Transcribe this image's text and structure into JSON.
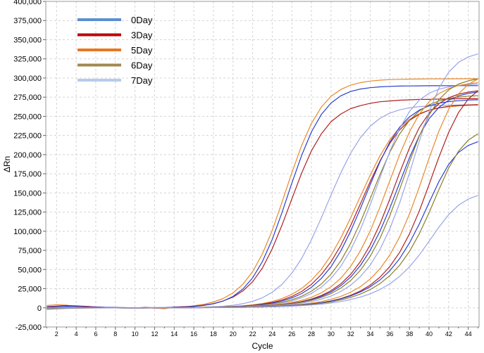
{
  "chart_data": {
    "type": "line",
    "title": "",
    "xlabel": "Cycle",
    "ylabel": "ΔRn",
    "xlim": [
      0.9,
      45.1
    ],
    "ylim": [
      -25000,
      400000
    ],
    "x_ticks": [
      2,
      4,
      6,
      8,
      10,
      12,
      14,
      16,
      18,
      20,
      22,
      24,
      26,
      28,
      30,
      32,
      34,
      36,
      38,
      40,
      42,
      44
    ],
    "y_ticks": [
      -25000,
      0,
      25000,
      50000,
      75000,
      100000,
      125000,
      150000,
      175000,
      200000,
      225000,
      250000,
      275000,
      300000,
      325000,
      350000,
      375000,
      400000
    ],
    "y_tick_labels": [
      "-25,000",
      "0",
      "25,000",
      "50,000",
      "75,000",
      "100,000",
      "125,000",
      "150,000",
      "175,000",
      "200,000",
      "225,000",
      "250,000",
      "275,000",
      "300,000",
      "325,000",
      "350,000",
      "375,000",
      "400,000"
    ],
    "grid": true,
    "legend_position": "top-left",
    "legend": [
      {
        "name": "0Day",
        "color": "#5b8fd0"
      },
      {
        "name": "3Day",
        "color": "#c00000"
      },
      {
        "name": "5Day",
        "color": "#e87722"
      },
      {
        "name": "6Day",
        "color": "#a08850"
      },
      {
        "name": "7Day",
        "color": "#b8cce8"
      }
    ],
    "x": [
      1,
      2,
      3,
      4,
      5,
      6,
      7,
      8,
      9,
      10,
      11,
      12,
      13,
      14,
      15,
      16,
      17,
      18,
      19,
      20,
      21,
      22,
      23,
      24,
      25,
      26,
      27,
      28,
      29,
      30,
      31,
      32,
      33,
      34,
      35,
      36,
      37,
      38,
      39,
      40,
      41,
      42,
      43,
      44,
      45
    ],
    "series": [
      {
        "name": "5Day",
        "group": "5Day",
        "color": "#e8892a",
        "values": [
          3000,
          4000,
          3500,
          1500,
          2000,
          800,
          600,
          300,
          200,
          -400,
          500,
          0,
          -1200,
          1200,
          900,
          2800,
          4600,
          7600,
          12200,
          19500,
          30700,
          47200,
          70500,
          101000,
          137800,
          176400,
          211900,
          240800,
          261900,
          276100,
          285100,
          290700,
          294000,
          296000,
          297200,
          297900,
          298300,
          298600,
          298700,
          298800,
          298900,
          298900,
          299000,
          299000,
          299000
        ]
      },
      {
        "name": "3Day",
        "group": "3Day",
        "color": "#b02020",
        "values": [
          1500,
          2200,
          3000,
          2500,
          2000,
          1200,
          600,
          300,
          0,
          -400,
          500,
          -500,
          0,
          1000,
          1500,
          2000,
          3500,
          5500,
          9000,
          14000,
          22000,
          34000,
          52000,
          77000,
          108000,
          142000,
          176000,
          205000,
          227000,
          243000,
          253000,
          260000,
          264000,
          267000,
          269000,
          270000,
          271000,
          271500,
          272000,
          272000,
          272500,
          272500,
          273000,
          273000,
          273000
        ]
      },
      {
        "name": "0Day",
        "group": "0Day",
        "color": "#2a3fd0",
        "values": [
          1000,
          1500,
          2000,
          1800,
          1200,
          900,
          600,
          400,
          200,
          100,
          300,
          200,
          400,
          700,
          1100,
          1800,
          3100,
          5300,
          8900,
          14900,
          24500,
          39200,
          60500,
          89200,
          124400,
          162600,
          199100,
          229700,
          252300,
          267400,
          276800,
          282400,
          285600,
          287400,
          288500,
          289100,
          289500,
          289700,
          289800,
          289900,
          289900,
          290000,
          290000,
          290000,
          290000
        ]
      },
      {
        "name": "7Day",
        "group": "7Day",
        "color": "#9aa3ea",
        "values": [
          -1000,
          0,
          500,
          400,
          300,
          200,
          100,
          0,
          -200,
          -300,
          0,
          -100,
          100,
          200,
          300,
          500,
          800,
          1300,
          2100,
          3400,
          5400,
          8500,
          13200,
          20300,
          30600,
          45100,
          64500,
          88900,
          117300,
          147300,
          176300,
          201800,
          222200,
          237200,
          247500,
          254200,
          258500,
          261100,
          262700,
          263600,
          264200,
          264500,
          264700,
          264800,
          264900
        ]
      },
      {
        "name": "5Day",
        "group": "5Day",
        "color": "#e8892a",
        "values": [
          -1500,
          -800,
          -500,
          -300,
          -200,
          -100,
          0,
          -100,
          -200,
          -300,
          -200,
          -100,
          0,
          100,
          300,
          500,
          700,
          900,
          1300,
          1900,
          2700,
          3900,
          5700,
          8300,
          12100,
          17600,
          25300,
          36000,
          50200,
          68600,
          91300,
          117500,
          145600,
          173500,
          198800,
          219600,
          235300,
          246200,
          253400,
          258000,
          260800,
          262500,
          263600,
          264200,
          264600
        ]
      },
      {
        "name": "3Day",
        "group": "3Day",
        "color": "#b02020",
        "values": [
          -1000,
          -500,
          -300,
          -200,
          -100,
          0,
          0,
          -100,
          -200,
          -300,
          -200,
          -100,
          0,
          100,
          200,
          400,
          600,
          800,
          1100,
          1600,
          2300,
          3300,
          4800,
          7000,
          10200,
          14800,
          21400,
          30700,
          43400,
          60200,
          81600,
          107300,
          135900,
          165000,
          192000,
          214800,
          232300,
          244600,
          252800,
          258000,
          261100,
          263000,
          264200,
          264900,
          265300
        ]
      },
      {
        "name": "0Day",
        "group": "0Day",
        "color": "#2a3fd0",
        "values": [
          -500,
          -300,
          -200,
          -100,
          0,
          100,
          100,
          0,
          -100,
          -200,
          -100,
          0,
          100,
          200,
          300,
          400,
          600,
          800,
          1100,
          1500,
          2100,
          3000,
          4300,
          6200,
          8900,
          12900,
          18600,
          26800,
          38200,
          53700,
          74300,
          100000,
          129700,
          161100,
          191100,
          216500,
          235900,
          249300,
          258100,
          263700,
          267100,
          269200,
          270400,
          271200,
          271600
        ]
      },
      {
        "name": "6Day",
        "group": "6Day",
        "color": "#8a7f28",
        "values": [
          -2000,
          -1200,
          -800,
          -500,
          -300,
          -200,
          -100,
          -100,
          -200,
          -300,
          -200,
          -100,
          0,
          100,
          200,
          300,
          500,
          700,
          900,
          1300,
          1800,
          2500,
          3600,
          5100,
          7300,
          10500,
          15100,
          21700,
          31000,
          43900,
          61400,
          84100,
          111800,
          142800,
          174300,
          203200,
          227000,
          244800,
          257000,
          265000,
          270000,
          273200,
          275100,
          276300,
          277000
        ]
      },
      {
        "name": "7Day",
        "group": "7Day",
        "color": "#9aa3ea",
        "values": [
          -1000,
          -600,
          -400,
          -300,
          -200,
          -100,
          0,
          -100,
          -200,
          -300,
          -200,
          -100,
          0,
          100,
          200,
          300,
          500,
          600,
          800,
          1100,
          1500,
          2200,
          3100,
          4400,
          6300,
          9100,
          13100,
          18800,
          27000,
          38400,
          54200,
          75300,
          102300,
          134700,
          170000,
          204400,
          234000,
          256300,
          271000,
          280100,
          285400,
          288500,
          290300,
          291300,
          291900
        ]
      },
      {
        "name": "5Day",
        "group": "5Day",
        "color": "#e8892a",
        "values": [
          -500,
          -300,
          -200,
          -100,
          0,
          0,
          0,
          -100,
          -200,
          -200,
          -100,
          0,
          100,
          100,
          200,
          300,
          400,
          600,
          800,
          1000,
          1400,
          1900,
          2600,
          3600,
          5000,
          7000,
          9800,
          13800,
          19500,
          27500,
          38700,
          54000,
          74400,
          100500,
          131800,
          166100,
          199900,
          229600,
          252800,
          269100,
          279700,
          286200,
          290200,
          292500,
          293900
        ]
      },
      {
        "name": "3Day",
        "group": "3Day",
        "color": "#b02020",
        "values": [
          -300,
          -200,
          -100,
          -100,
          0,
          0,
          0,
          -100,
          -100,
          -200,
          -100,
          0,
          0,
          100,
          200,
          200,
          300,
          500,
          600,
          900,
          1200,
          1600,
          2200,
          3000,
          4200,
          5900,
          8200,
          11400,
          16000,
          22400,
          31400,
          43700,
          60400,
          82300,
          109800,
          142100,
          176400,
          208600,
          235100,
          254100,
          266500,
          274200,
          278800,
          281600,
          283300
        ]
      },
      {
        "name": "0Day",
        "group": "0Day",
        "color": "#2a3fd0",
        "values": [
          -300,
          -200,
          -100,
          0,
          0,
          100,
          100,
          0,
          -100,
          -100,
          0,
          0,
          100,
          200,
          200,
          300,
          400,
          500,
          700,
          900,
          1200,
          1600,
          2200,
          3000,
          4100,
          5600,
          7700,
          10700,
          14800,
          20700,
          28900,
          40100,
          55300,
          75200,
          100300,
          130300,
          163300,
          196000,
          224700,
          246800,
          261700,
          271000,
          276600,
          279900,
          281800
        ]
      },
      {
        "name": "6Day",
        "group": "6Day",
        "color": "#8a7f28",
        "values": [
          -800,
          -500,
          -300,
          -200,
          -100,
          -100,
          0,
          -100,
          -200,
          -200,
          -100,
          0,
          100,
          100,
          200,
          300,
          400,
          500,
          700,
          900,
          1200,
          1600,
          2100,
          2900,
          3900,
          5300,
          7200,
          9900,
          13500,
          18700,
          25800,
          35600,
          49100,
          67300,
          91000,
          120500,
          154600,
          190400,
          224100,
          251800,
          271700,
          284500,
          292100,
          296400,
          298800
        ]
      },
      {
        "name": "7Day",
        "group": "7Day",
        "color": "#9aa3ea",
        "values": [
          -400,
          -300,
          -200,
          -100,
          0,
          0,
          0,
          -100,
          -100,
          -200,
          -100,
          0,
          0,
          100,
          200,
          200,
          300,
          400,
          600,
          700,
          1000,
          1300,
          1800,
          2400,
          3200,
          4400,
          6000,
          8200,
          11300,
          15500,
          21400,
          29500,
          40700,
          56000,
          76600,
          103400,
          136900,
          176000,
          217300,
          255800,
          286700,
          307700,
          320400,
          327600,
          331500
        ]
      },
      {
        "name": "5Day",
        "group": "5Day",
        "color": "#e8892a",
        "values": [
          -300,
          -200,
          -100,
          -100,
          0,
          0,
          0,
          -100,
          -100,
          -100,
          0,
          0,
          0,
          100,
          100,
          200,
          300,
          400,
          500,
          600,
          800,
          1100,
          1400,
          1900,
          2500,
          3400,
          4500,
          6100,
          8200,
          11100,
          15000,
          20400,
          27700,
          37700,
          51100,
          69100,
          92700,
          122400,
          157500,
          195100,
          230600,
          259300,
          279300,
          291700,
          298800
        ]
      },
      {
        "name": "3Day",
        "group": "3Day",
        "color": "#b02020",
        "values": [
          -200,
          -100,
          -100,
          0,
          0,
          0,
          0,
          -100,
          -100,
          -100,
          0,
          0,
          0,
          100,
          100,
          200,
          200,
          300,
          400,
          500,
          700,
          900,
          1200,
          1600,
          2100,
          2800,
          3700,
          5000,
          6700,
          9000,
          12100,
          16300,
          22000,
          29700,
          40100,
          54000,
          72500,
          96400,
          126300,
          160900,
          196700,
          229200,
          254900,
          272600,
          283500
        ]
      },
      {
        "name": "0Day",
        "group": "0Day",
        "color": "#2a3fd0",
        "values": [
          -300,
          -200,
          -100,
          0,
          0,
          0,
          100,
          0,
          -100,
          -100,
          0,
          0,
          100,
          100,
          200,
          200,
          300,
          400,
          500,
          600,
          800,
          1000,
          1300,
          1700,
          2300,
          3000,
          3900,
          5100,
          6700,
          8900,
          11800,
          15600,
          20700,
          27500,
          36500,
          48500,
          64300,
          84600,
          109400,
          137300,
          164800,
          187300,
          202800,
          212000,
          217000
        ]
      },
      {
        "name": "6Day",
        "group": "6Day",
        "color": "#8a7f28",
        "values": [
          -500,
          -300,
          -200,
          -100,
          -100,
          0,
          0,
          -100,
          -100,
          -100,
          0,
          0,
          0,
          100,
          100,
          200,
          300,
          300,
          400,
          600,
          700,
          900,
          1200,
          1500,
          2000,
          2600,
          3400,
          4500,
          5900,
          7800,
          10300,
          13600,
          18000,
          23900,
          31700,
          42000,
          55700,
          73600,
          96500,
          124200,
          154400,
          182600,
          204500,
          218900,
          227300
        ]
      },
      {
        "name": "7Day",
        "group": "7Day",
        "color": "#9aa3ea",
        "values": [
          -300,
          -200,
          -100,
          0,
          0,
          0,
          0,
          -100,
          -100,
          -100,
          0,
          0,
          0,
          100,
          100,
          200,
          200,
          300,
          400,
          500,
          600,
          800,
          1000,
          1300,
          1700,
          2200,
          2900,
          3700,
          4800,
          6300,
          8200,
          10700,
          14000,
          18300,
          24000,
          31400,
          41100,
          53500,
          68900,
          86800,
          105300,
          121700,
          134000,
          142000,
          146800
        ]
      }
    ]
  }
}
